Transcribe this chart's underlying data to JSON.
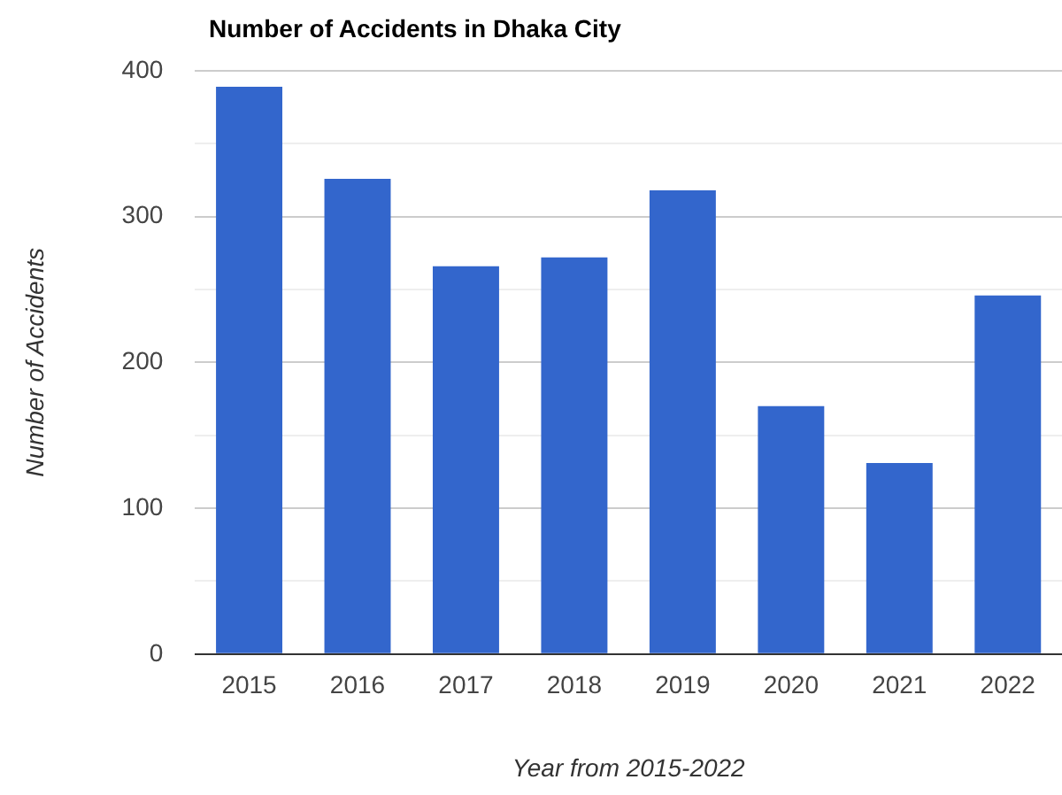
{
  "chart_data": {
    "type": "bar",
    "title": "Number of Accidents in Dhaka City",
    "xlabel": "Year from 2015-2022",
    "ylabel": "Number of Accidents",
    "categories": [
      "2015",
      "2016",
      "2017",
      "2018",
      "2019",
      "2020",
      "2021",
      "2022"
    ],
    "values": [
      389,
      326,
      266,
      272,
      318,
      170,
      131,
      246
    ],
    "color": "#3366cc",
    "ylim": [
      0,
      400
    ],
    "yticks": [
      0,
      {
        "value": 50,
        "label": null
      },
      100,
      {
        "value": 150,
        "label": null
      },
      200,
      {
        "value": 250,
        "label": null
      },
      300,
      {
        "value": 350,
        "label": null
      },
      400
    ],
    "grid": "y"
  }
}
